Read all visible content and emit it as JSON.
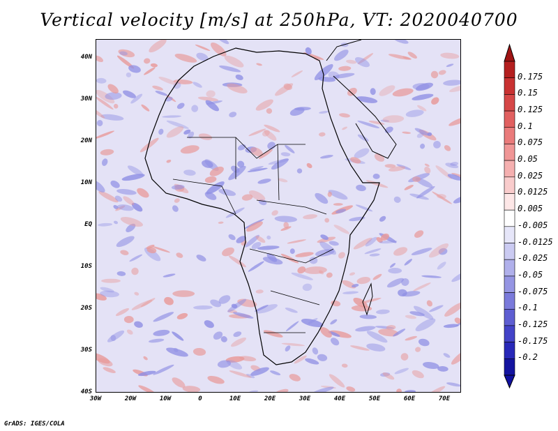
{
  "title": "Vertical velocity [m/s] at 250hPa, VT: 2020040700",
  "credit": "GrADS: IGES/COLA",
  "axes": {
    "lat_labels": [
      "40N",
      "30N",
      "20N",
      "10N",
      "EQ",
      "10S",
      "20S",
      "30S",
      "40S"
    ],
    "lon_labels": [
      "30W",
      "20W",
      "10W",
      "0",
      "10E",
      "20E",
      "30E",
      "40E",
      "50E",
      "60E",
      "70E"
    ]
  },
  "colorbar": {
    "labels": [
      "0.175",
      "0.15",
      "0.125",
      "0.1",
      "0.075",
      "0.05",
      "0.025",
      "0.0125",
      "0.005",
      "-0.005",
      "-0.0125",
      "-0.025",
      "-0.05",
      "-0.075",
      "-0.1",
      "-0.125",
      "-0.175",
      "-0.2"
    ],
    "colors": [
      "#b41f1f",
      "#c93232",
      "#d64747",
      "#e16060",
      "#ea7b7b",
      "#f09696",
      "#f5b0b0",
      "#f9cccc",
      "#fde7e7",
      "#ffffff",
      "#e6e6f9",
      "#cbcbf2",
      "#b0b0eb",
      "#9595e3",
      "#7a7adb",
      "#5e5ed2",
      "#4343c8",
      "#2828b8",
      "#1414a0"
    ],
    "top_arrow_color": "#a01414",
    "bottom_arrow_color": "#1010a0"
  },
  "field_colors": {
    "background": "#e4e2f6",
    "positive": "#e89a9a",
    "negative": "#8f8fe4",
    "coast": "#000000"
  }
}
